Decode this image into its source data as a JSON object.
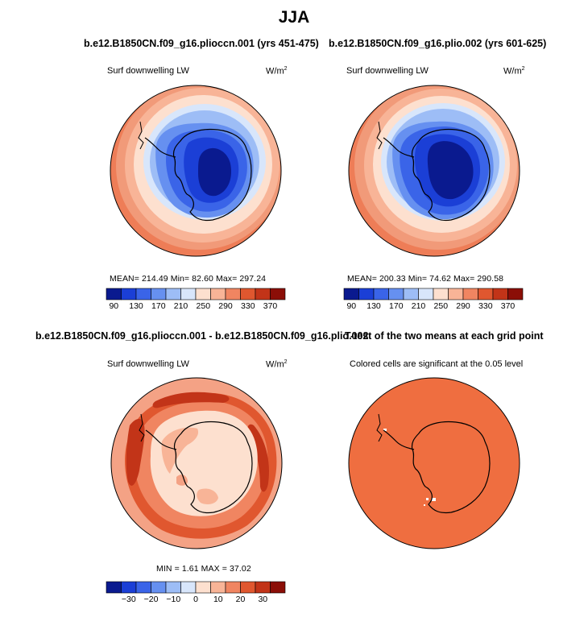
{
  "figure_title": "JJA",
  "panels": [
    {
      "title": "b.e12.B1850CN.f09_g16.plioccn.001 (yrs 451-475)",
      "variable": "Surf downwelling LW",
      "units": "W/m",
      "units_sup": "2",
      "stats": "MEAN= 214.49   Min=  82.60   Max= 297.24"
    },
    {
      "title": "b.e12.B1850CN.f09_g16.plio.002 (yrs 601-625)",
      "variable": "Surf downwelling LW",
      "units": "W/m",
      "units_sup": "2",
      "stats": "MEAN= 200.33   Min=  74.62   Max= 290.58"
    },
    {
      "title": "b.e12.B1850CN.f09_g16.plioccn.001 - b.e12.B1850CN.f09_g16.plio.002",
      "variable": "Surf downwelling LW",
      "units": "W/m",
      "units_sup": "2",
      "stats": "MIN =    1.61  MAX =   37.02"
    },
    {
      "title": "T-test of the two means at each grid point",
      "subtitle": "Colored cells are significant at the 0.05 level"
    }
  ],
  "colorbar_abs": {
    "colors": [
      "#0a1a8f",
      "#1b3fd6",
      "#3a64e8",
      "#6690f0",
      "#9dbdf6",
      "#d8e6fb",
      "#fde0cf",
      "#f8b497",
      "#f08561",
      "#e0572f",
      "#c23418",
      "#8b0e07"
    ],
    "tick_labels": [
      "90",
      "130",
      "170",
      "210",
      "250",
      "290",
      "330",
      "370"
    ]
  },
  "colorbar_diff": {
    "colors": [
      "#0a1a8f",
      "#1b3fd6",
      "#3a64e8",
      "#6690f0",
      "#9dbdf6",
      "#d8e6fb",
      "#fde0cf",
      "#f8b497",
      "#f08561",
      "#e0572f",
      "#c23418",
      "#8b0e07"
    ],
    "tick_labels": [
      "−30",
      "−20",
      "−10",
      "0",
      "10",
      "20",
      "30"
    ]
  },
  "colors": {
    "significant": "#ef6e40",
    "ocean_outer": "#ee7d57",
    "ocean_mid": "#f4a285",
    "coast": "#000000"
  }
}
